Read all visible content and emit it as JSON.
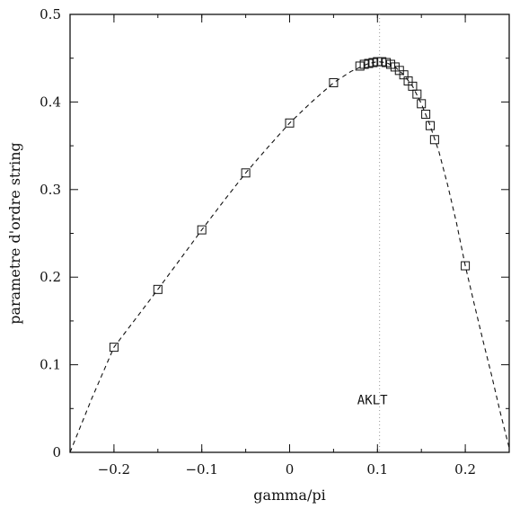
{
  "chart_data": {
    "type": "scatter",
    "xlabel": "gamma/pi",
    "ylabel": "parametre d'ordre string",
    "xlim": [
      -0.25,
      0.25
    ],
    "ylim": [
      0,
      0.5
    ],
    "xticks": [
      -0.2,
      -0.1,
      0,
      0.1,
      0.2
    ],
    "xtick_labels": [
      "−0.2",
      "−0.1",
      "0",
      "0.1",
      "0.2"
    ],
    "yticks": [
      0,
      0.1,
      0.2,
      0.3,
      0.4,
      0.5
    ],
    "ytick_labels": [
      "0",
      "0.1",
      "0.2",
      "0.3",
      "0.4",
      "0.5"
    ],
    "grid": false,
    "reference_line": {
      "x": 0.1024,
      "label": "AKLT"
    },
    "series": [
      {
        "marker": "square",
        "x": [
          -0.2,
          -0.15,
          -0.1,
          -0.05,
          0,
          0.05,
          0.08,
          0.085,
          0.09,
          0.095,
          0.1,
          0.105,
          0.11,
          0.115,
          0.12,
          0.125,
          0.13,
          0.135,
          0.14,
          0.145,
          0.15,
          0.155,
          0.16,
          0.165,
          0.17,
          0.2
        ],
        "y": [
          0.12,
          0.186,
          0.254,
          0.319,
          0.376,
          0.422,
          0.441,
          0.443,
          0.444,
          0.445,
          0.446,
          0.446,
          0.445,
          0.443,
          0.44,
          0.436,
          0.431,
          0.424,
          0.418,
          0.409,
          0.398,
          0.386,
          0.373,
          0.357,
          0.213,
          0.213
        ]
      }
    ],
    "curve": {
      "style": "dashed",
      "x": [
        -0.25,
        -0.225,
        -0.2,
        -0.175,
        -0.15,
        -0.125,
        -0.1,
        -0.075,
        -0.05,
        -0.025,
        0,
        0.025,
        0.05,
        0.07,
        0.09,
        0.1,
        0.11,
        0.12,
        0.13,
        0.14,
        0.15,
        0.16,
        0.17,
        0.18,
        0.19,
        0.2,
        0.21,
        0.22,
        0.23,
        0.24,
        0.25
      ],
      "y": [
        0,
        0.062,
        0.12,
        0.153,
        0.186,
        0.22,
        0.254,
        0.287,
        0.319,
        0.348,
        0.376,
        0.4,
        0.422,
        0.435,
        0.444,
        0.446,
        0.445,
        0.44,
        0.431,
        0.418,
        0.398,
        0.373,
        0.343,
        0.305,
        0.262,
        0.213,
        0.17,
        0.128,
        0.088,
        0.045,
        0.005
      ]
    }
  }
}
